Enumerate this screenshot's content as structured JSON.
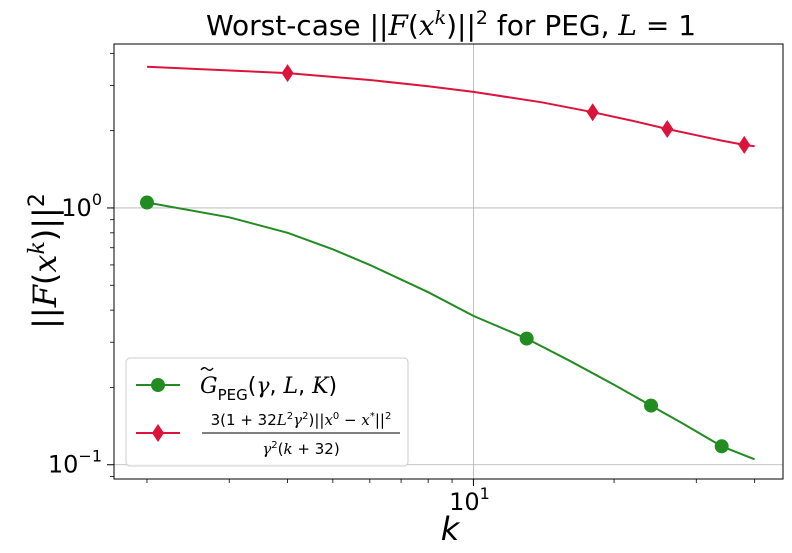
{
  "chart_data": {
    "type": "line",
    "title": "Worst-case ||F(x^k)||^2 for PEG, L = 1",
    "title_parts": {
      "prefix": "Worst-case ||",
      "F": "F",
      "x": "x",
      "k": "k",
      "close": ")||",
      "sq": "2",
      "mid": " for PEG, ",
      "L": "L",
      "eq": " = 1"
    },
    "xlabel": "k",
    "ylabel": "||F(x^k)||^2",
    "xscale": "log",
    "yscale": "log",
    "xlim": [
      1.7,
      46
    ],
    "ylim": [
      0.088,
      4.35
    ],
    "grid": true,
    "legend_position": "lower-left",
    "xticks": [
      {
        "value": 10,
        "base": "10",
        "exp": "1"
      }
    ],
    "yticks": [
      {
        "value": 1,
        "base": "10",
        "exp": "0"
      },
      {
        "value": 0.1,
        "base": "10",
        "exp": "−1"
      }
    ],
    "series": [
      {
        "name": "G_PEG(γ, L, K)",
        "color": "#228b22",
        "marker": "circle",
        "x": [
          2,
          3,
          4,
          5,
          6,
          8,
          10,
          13,
          16,
          20,
          24,
          28,
          34,
          40
        ],
        "y": [
          1.05,
          0.92,
          0.8,
          0.69,
          0.6,
          0.47,
          0.38,
          0.31,
          0.255,
          0.205,
          0.17,
          0.145,
          0.118,
          0.105
        ],
        "marker_x": [
          2,
          13,
          24,
          34
        ]
      },
      {
        "name": "3(1 + 32L^2γ^2)||x^0 − x*||^2 / (γ^2(k + 32))",
        "color": "#dc143c",
        "marker": "diamond",
        "x": [
          2,
          4,
          6,
          8,
          10,
          14,
          18,
          22,
          26,
          30,
          34,
          38,
          40
        ],
        "y": [
          3.55,
          3.35,
          3.15,
          2.98,
          2.83,
          2.58,
          2.36,
          2.18,
          2.03,
          1.92,
          1.83,
          1.76,
          1.74
        ],
        "marker_x": [
          4,
          18,
          26,
          38
        ]
      }
    ]
  }
}
